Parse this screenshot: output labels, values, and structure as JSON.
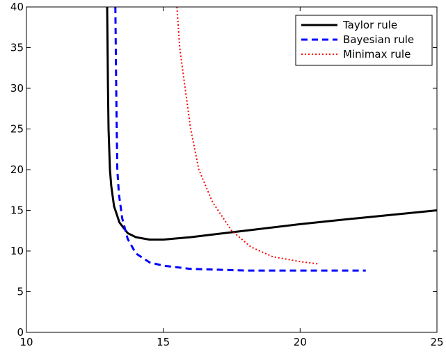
{
  "chart_data": {
    "type": "line",
    "title": "",
    "xlabel": "",
    "ylabel": "",
    "xlim": [
      10,
      25
    ],
    "ylim": [
      0,
      40
    ],
    "xticks": [
      10,
      15,
      20,
      25
    ],
    "yticks": [
      0,
      5,
      10,
      15,
      20,
      25,
      30,
      35,
      40
    ],
    "grid": false,
    "legend_position": "top-right",
    "series": [
      {
        "name": "Taylor rule",
        "color": "#000000",
        "style": "solid",
        "points": [
          [
            12.95,
            40
          ],
          [
            12.98,
            30
          ],
          [
            13.0,
            25
          ],
          [
            13.05,
            20
          ],
          [
            13.1,
            18
          ],
          [
            13.2,
            15.5
          ],
          [
            13.4,
            13.5
          ],
          [
            13.7,
            12.2
          ],
          [
            14.0,
            11.7
          ],
          [
            14.5,
            11.4
          ],
          [
            15.0,
            11.4
          ],
          [
            16.0,
            11.7
          ],
          [
            17.0,
            12.1
          ],
          [
            18.0,
            12.5
          ],
          [
            20.0,
            13.3
          ],
          [
            22.0,
            14.0
          ],
          [
            25.0,
            15.0
          ]
        ]
      },
      {
        "name": "Bayesian rule",
        "color": "#0000ff",
        "style": "dashed",
        "points": [
          [
            13.25,
            40
          ],
          [
            13.28,
            30
          ],
          [
            13.3,
            25
          ],
          [
            13.32,
            20
          ],
          [
            13.38,
            17
          ],
          [
            13.5,
            14
          ],
          [
            13.7,
            11.5
          ],
          [
            14.0,
            9.7
          ],
          [
            14.5,
            8.6
          ],
          [
            15.0,
            8.2
          ],
          [
            16.0,
            7.8
          ],
          [
            17.0,
            7.7
          ],
          [
            18.0,
            7.6
          ],
          [
            20.0,
            7.6
          ],
          [
            22.4,
            7.6
          ]
        ]
      },
      {
        "name": "Minimax rule",
        "color": "#ff0000",
        "style": "dotted",
        "points": [
          [
            15.5,
            40
          ],
          [
            15.6,
            35
          ],
          [
            15.8,
            30
          ],
          [
            16.0,
            25
          ],
          [
            16.3,
            20
          ],
          [
            16.8,
            16
          ],
          [
            17.5,
            12.5
          ],
          [
            18.2,
            10.5
          ],
          [
            19.0,
            9.3
          ],
          [
            20.0,
            8.7
          ],
          [
            20.7,
            8.4
          ]
        ]
      }
    ]
  }
}
